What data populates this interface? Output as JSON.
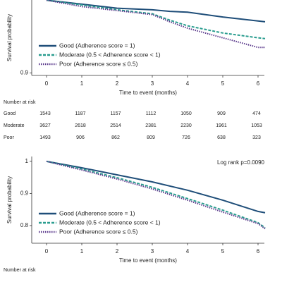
{
  "chart_data": [
    {
      "type": "line",
      "xlabel": "Time to event (months)",
      "ylabel": "Survival probability",
      "x": [
        0,
        1,
        2,
        3,
        3.5,
        4,
        5,
        6,
        6.2
      ],
      "xlim": [
        -0.42,
        6.18
      ],
      "xticks": [
        0,
        1,
        2,
        3,
        4,
        5,
        6
      ],
      "ylim": [
        0.897,
        1.0
      ],
      "yticks": [
        0.9
      ],
      "legend": "lower left",
      "series": [
        {
          "name": "Good (Adherence score = 1)",
          "color": "#1f4e79",
          "dash": "solid",
          "values": [
            0.991,
            0.986,
            0.981,
            0.979,
            0.977,
            0.976,
            0.97,
            0.965,
            0.964
          ]
        },
        {
          "name": "Moderate (0.5 < Adherence score < 1)",
          "color": "#2a9d8f",
          "dash": "dashed",
          "values": [
            0.991,
            0.985,
            0.979,
            0.974,
            0.966,
            0.959,
            0.95,
            0.944,
            0.943
          ]
        },
        {
          "name": "Poor (Adherence score ≤ 0.5)",
          "color": "#5b3a8c",
          "dash": "dotted",
          "values": [
            0.991,
            0.983,
            0.978,
            0.973,
            0.964,
            0.956,
            0.944,
            0.932,
            0.932
          ]
        }
      ],
      "risk_table": {
        "title": "Number at risk",
        "rows": [
          {
            "label": "Good",
            "values": [
              1543,
              1187,
              1157,
              1112,
              1050,
              909,
              474
            ]
          },
          {
            "label": "Moderate",
            "values": [
              3627,
              2618,
              2514,
              2381,
              2230,
              1961,
              1053
            ]
          },
          {
            "label": "Poor",
            "values": [
              1493,
              906,
              862,
              809,
              726,
              638,
              323
            ]
          }
        ]
      }
    },
    {
      "type": "line",
      "xlabel": "Time to event (months)",
      "ylabel": "Survival probability",
      "annotation": "Log rank p=0.0090",
      "x": [
        0,
        1,
        2,
        3,
        4,
        5,
        6,
        6.2
      ],
      "xlim": [
        -0.42,
        6.18
      ],
      "xticks": [
        0,
        1,
        2,
        3,
        4,
        5,
        6
      ],
      "ylim": [
        0.745,
        1.015
      ],
      "yticks": [
        0.8,
        0.9,
        1.0
      ],
      "legend": "lower left",
      "series": [
        {
          "name": "Good (Adherence score = 1)",
          "color": "#1f4e79",
          "dash": "solid",
          "values": [
            1.0,
            0.98,
            0.958,
            0.936,
            0.91,
            0.879,
            0.844,
            0.84
          ]
        },
        {
          "name": "Moderate (0.5 < Adherence score < 1)",
          "color": "#2a9d8f",
          "dash": "dashed",
          "values": [
            1.0,
            0.976,
            0.949,
            0.919,
            0.884,
            0.848,
            0.809,
            0.793
          ]
        },
        {
          "name": "Poor (Adherence score ≤ 0.5)",
          "color": "#5b3a8c",
          "dash": "dotted",
          "values": [
            1.0,
            0.973,
            0.945,
            0.914,
            0.879,
            0.842,
            0.806,
            0.79
          ]
        }
      ],
      "risk_table": {
        "title": "Number at risk",
        "rows": []
      }
    }
  ]
}
